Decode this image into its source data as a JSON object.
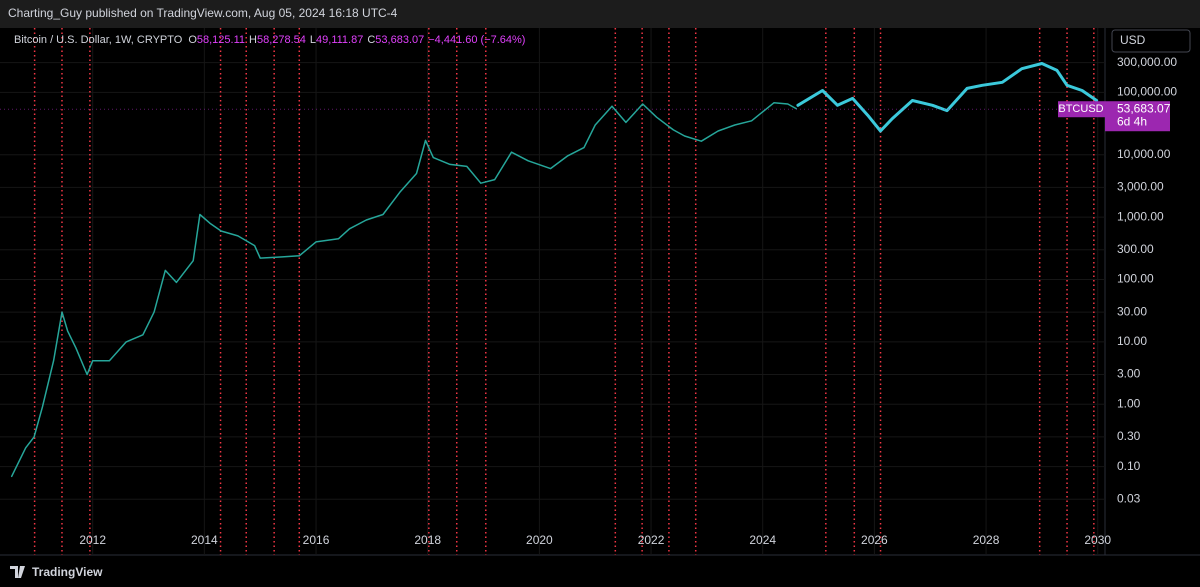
{
  "header": {
    "publisher": "Charting_Guy published on TradingView.com, Aug 05, 2024 16:18 UTC-4"
  },
  "footer": {
    "brand": "TradingView"
  },
  "chart_data": {
    "type": "line",
    "title": "Bitcoin / U.S. Dollar, 1W, CRYPTO",
    "ohlc": [
      {
        "label": "O",
        "value": "58,125.11"
      },
      {
        "label": "H",
        "value": "58,278.54"
      },
      {
        "label": "L",
        "value": "49,111.87"
      },
      {
        "label": "C",
        "value": "53,683.07"
      }
    ],
    "change": "−4,441.60 (−7.64%)",
    "currency": "USD",
    "price_label": {
      "symbol": "BTCUSD",
      "price": {
        "value": 53683.07,
        "label": "53,683.07"
      },
      "countdown": "6d 4h",
      "color": "#9c27b0"
    },
    "ylog": true,
    "grid": true,
    "xlim": [
      2010.34,
      2030.13
    ],
    "ylim": [
      0.01,
      1000000
    ],
    "xticks": [
      2012,
      2014,
      2016,
      2018,
      2020,
      2022,
      2024,
      2026,
      2028,
      2030
    ],
    "yticks": [
      {
        "value": 300000,
        "label": "300,000.00"
      },
      {
        "value": 100000,
        "label": "100,000.00"
      },
      {
        "value": 10000,
        "label": "10,000.00"
      },
      {
        "value": 3000,
        "label": "3,000.00"
      },
      {
        "value": 1000,
        "label": "1,000.00"
      },
      {
        "value": 300,
        "label": "300.00"
      },
      {
        "value": 100,
        "label": "100.00"
      },
      {
        "value": 30,
        "label": "30.00"
      },
      {
        "value": 10,
        "label": "10.00"
      },
      {
        "value": 3,
        "label": "3.00"
      },
      {
        "value": 1,
        "label": "1.00"
      },
      {
        "value": 0.3,
        "label": "0.30"
      },
      {
        "value": 0.1,
        "label": "0.10"
      },
      {
        "value": 0.03,
        "label": "0.03"
      }
    ],
    "vlines": {
      "color": "#f23645",
      "x": [
        2010.96,
        2011.45,
        2011.95,
        2014.29,
        2014.75,
        2015.25,
        2015.7,
        2018.02,
        2018.52,
        2019.04,
        2021.36,
        2021.84,
        2022.32,
        2022.8,
        2025.13,
        2025.64,
        2026.11,
        2028.96,
        2029.45,
        2029.93
      ]
    },
    "series": [
      {
        "color": "#26a69a",
        "width": 1.5,
        "x": [
          2010.55,
          2010.8,
          2010.95,
          2011.1,
          2011.3,
          2011.45,
          2011.55,
          2011.7,
          2011.9,
          2012.0,
          2012.3,
          2012.6,
          2012.9,
          2013.1,
          2013.3,
          2013.5,
          2013.8,
          2013.92,
          2014.1,
          2014.3,
          2014.6,
          2014.9,
          2015.0,
          2015.4,
          2015.7,
          2016.0,
          2016.4,
          2016.6,
          2016.9,
          2017.2,
          2017.5,
          2017.8,
          2017.96,
          2018.1,
          2018.4,
          2018.7,
          2018.95,
          2019.2,
          2019.5,
          2019.8,
          2020.2,
          2020.5,
          2020.8,
          2021.0,
          2021.3,
          2021.55,
          2021.85,
          2022.1,
          2022.4,
          2022.6,
          2022.9,
          2023.2,
          2023.5,
          2023.8,
          2024.2,
          2024.45,
          2024.6
        ],
        "values": [
          0.07,
          0.2,
          0.3,
          0.9,
          5,
          30,
          15,
          8,
          3,
          5,
          5,
          10,
          13,
          30,
          140,
          90,
          200,
          1100,
          800,
          600,
          500,
          350,
          220,
          230,
          240,
          400,
          450,
          650,
          900,
          1100,
          2500,
          5000,
          17000,
          9000,
          7000,
          6500,
          3500,
          4000,
          11000,
          8000,
          6000,
          9500,
          13000,
          30000,
          60000,
          33000,
          65000,
          40000,
          25000,
          20000,
          16500,
          24000,
          30000,
          35000,
          68000,
          65000,
          55000
        ]
      },
      {
        "color": "#3bc9db",
        "width": 3,
        "x": [
          2024.63,
          2025.07,
          2025.34,
          2025.61,
          2025.88,
          2026.11,
          2026.32,
          2026.68,
          2027.04,
          2027.3,
          2027.66,
          2027.93,
          2028.29,
          2028.64,
          2029.0,
          2029.27,
          2029.45,
          2029.72,
          2029.98
        ],
        "values": [
          62000,
          107000,
          62000,
          80000,
          43000,
          24000,
          38000,
          74000,
          62000,
          51000,
          116000,
          130000,
          145000,
          240000,
          290000,
          225000,
          130000,
          107000,
          74000
        ]
      }
    ]
  }
}
